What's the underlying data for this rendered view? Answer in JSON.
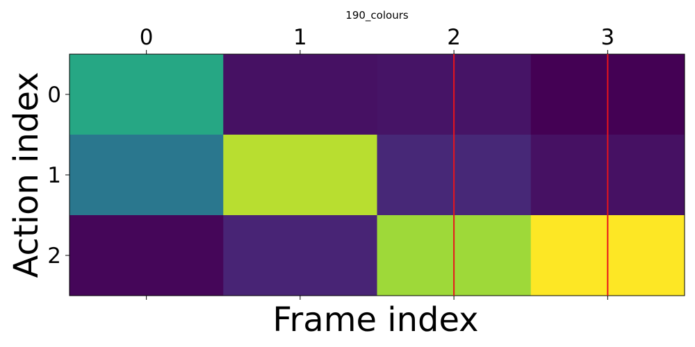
{
  "chart_data": {
    "type": "heatmap",
    "title": "190_colours",
    "xlabel": "Frame index",
    "ylabel": "Action index",
    "x_ticks": [
      "0",
      "1",
      "2",
      "3"
    ],
    "y_ticks": [
      "0",
      "1",
      "2"
    ],
    "x_axis_position": "top",
    "colormap": "viridis",
    "values": [
      [
        0.6,
        0.06,
        0.07,
        0.0
      ],
      [
        0.4,
        0.9,
        0.14,
        0.06
      ],
      [
        0.02,
        0.13,
        0.86,
        1.0
      ]
    ],
    "vlines": [
      2,
      3
    ],
    "vline_color": "#e8141c"
  }
}
